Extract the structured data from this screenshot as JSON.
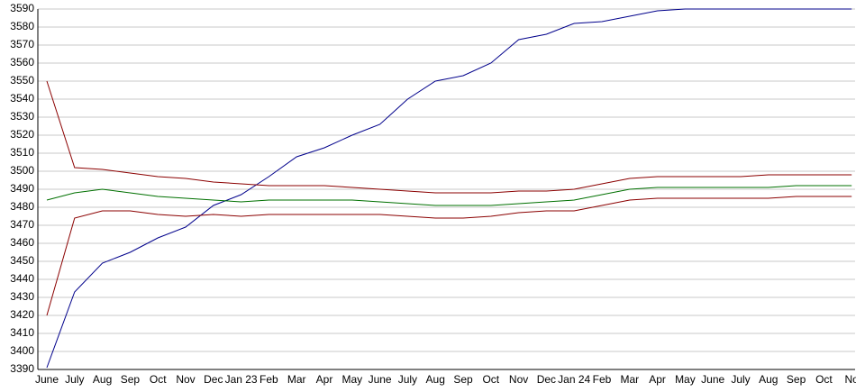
{
  "chart_data": {
    "type": "line",
    "categories": [
      "June",
      "July",
      "Aug",
      "Sep",
      "Oct",
      "Nov",
      "Dec",
      "Jan 23",
      "Feb",
      "Mar",
      "Apr",
      "May",
      "June",
      "July",
      "Aug",
      "Sep",
      "Oct",
      "Nov",
      "Dec",
      "Jan 24",
      "Feb",
      "Mar",
      "Apr",
      "May",
      "June",
      "July",
      "Aug",
      "Sep",
      "Oct",
      "No"
    ],
    "series": [
      {
        "color": "#00008b",
        "values": [
          3391,
          3433,
          3449,
          3455,
          3463,
          3469,
          3481,
          3487,
          3497,
          3508,
          3513,
          3520,
          3526,
          3540,
          3550,
          3553,
          3560,
          3573,
          3576,
          3582,
          3583,
          3586,
          3589,
          3590,
          3590,
          3590,
          3590,
          3590,
          3590,
          3590
        ]
      },
      {
        "color": "#8b0000",
        "values": [
          3550,
          3502,
          3501,
          3499,
          3497,
          3496,
          3494,
          3493,
          3492,
          3492,
          3492,
          3491,
          3490,
          3489,
          3488,
          3488,
          3488,
          3489,
          3489,
          3490,
          3493,
          3496,
          3497,
          3497,
          3497,
          3497,
          3498,
          3498,
          3498,
          3498
        ]
      },
      {
        "color": "#007000",
        "values": [
          3484,
          3488,
          3490,
          3488,
          3486,
          3485,
          3484,
          3483,
          3484,
          3484,
          3484,
          3484,
          3483,
          3482,
          3481,
          3481,
          3481,
          3482,
          3483,
          3484,
          3487,
          3490,
          3491,
          3491,
          3491,
          3491,
          3491,
          3492,
          3492,
          3492
        ]
      },
      {
        "color": "#8b0000",
        "values": [
          3420,
          3474,
          3478,
          3478,
          3476,
          3475,
          3476,
          3475,
          3476,
          3476,
          3476,
          3476,
          3476,
          3475,
          3474,
          3474,
          3475,
          3477,
          3478,
          3478,
          3481,
          3484,
          3485,
          3485,
          3485,
          3485,
          3485,
          3486,
          3486,
          3486
        ]
      }
    ],
    "ylim": [
      3390,
      3590
    ],
    "yticks": [
      3390,
      3400,
      3410,
      3420,
      3430,
      3440,
      3450,
      3460,
      3470,
      3480,
      3490,
      3500,
      3510,
      3520,
      3530,
      3540,
      3550,
      3560,
      3570,
      3580,
      3590
    ],
    "grid": true
  }
}
